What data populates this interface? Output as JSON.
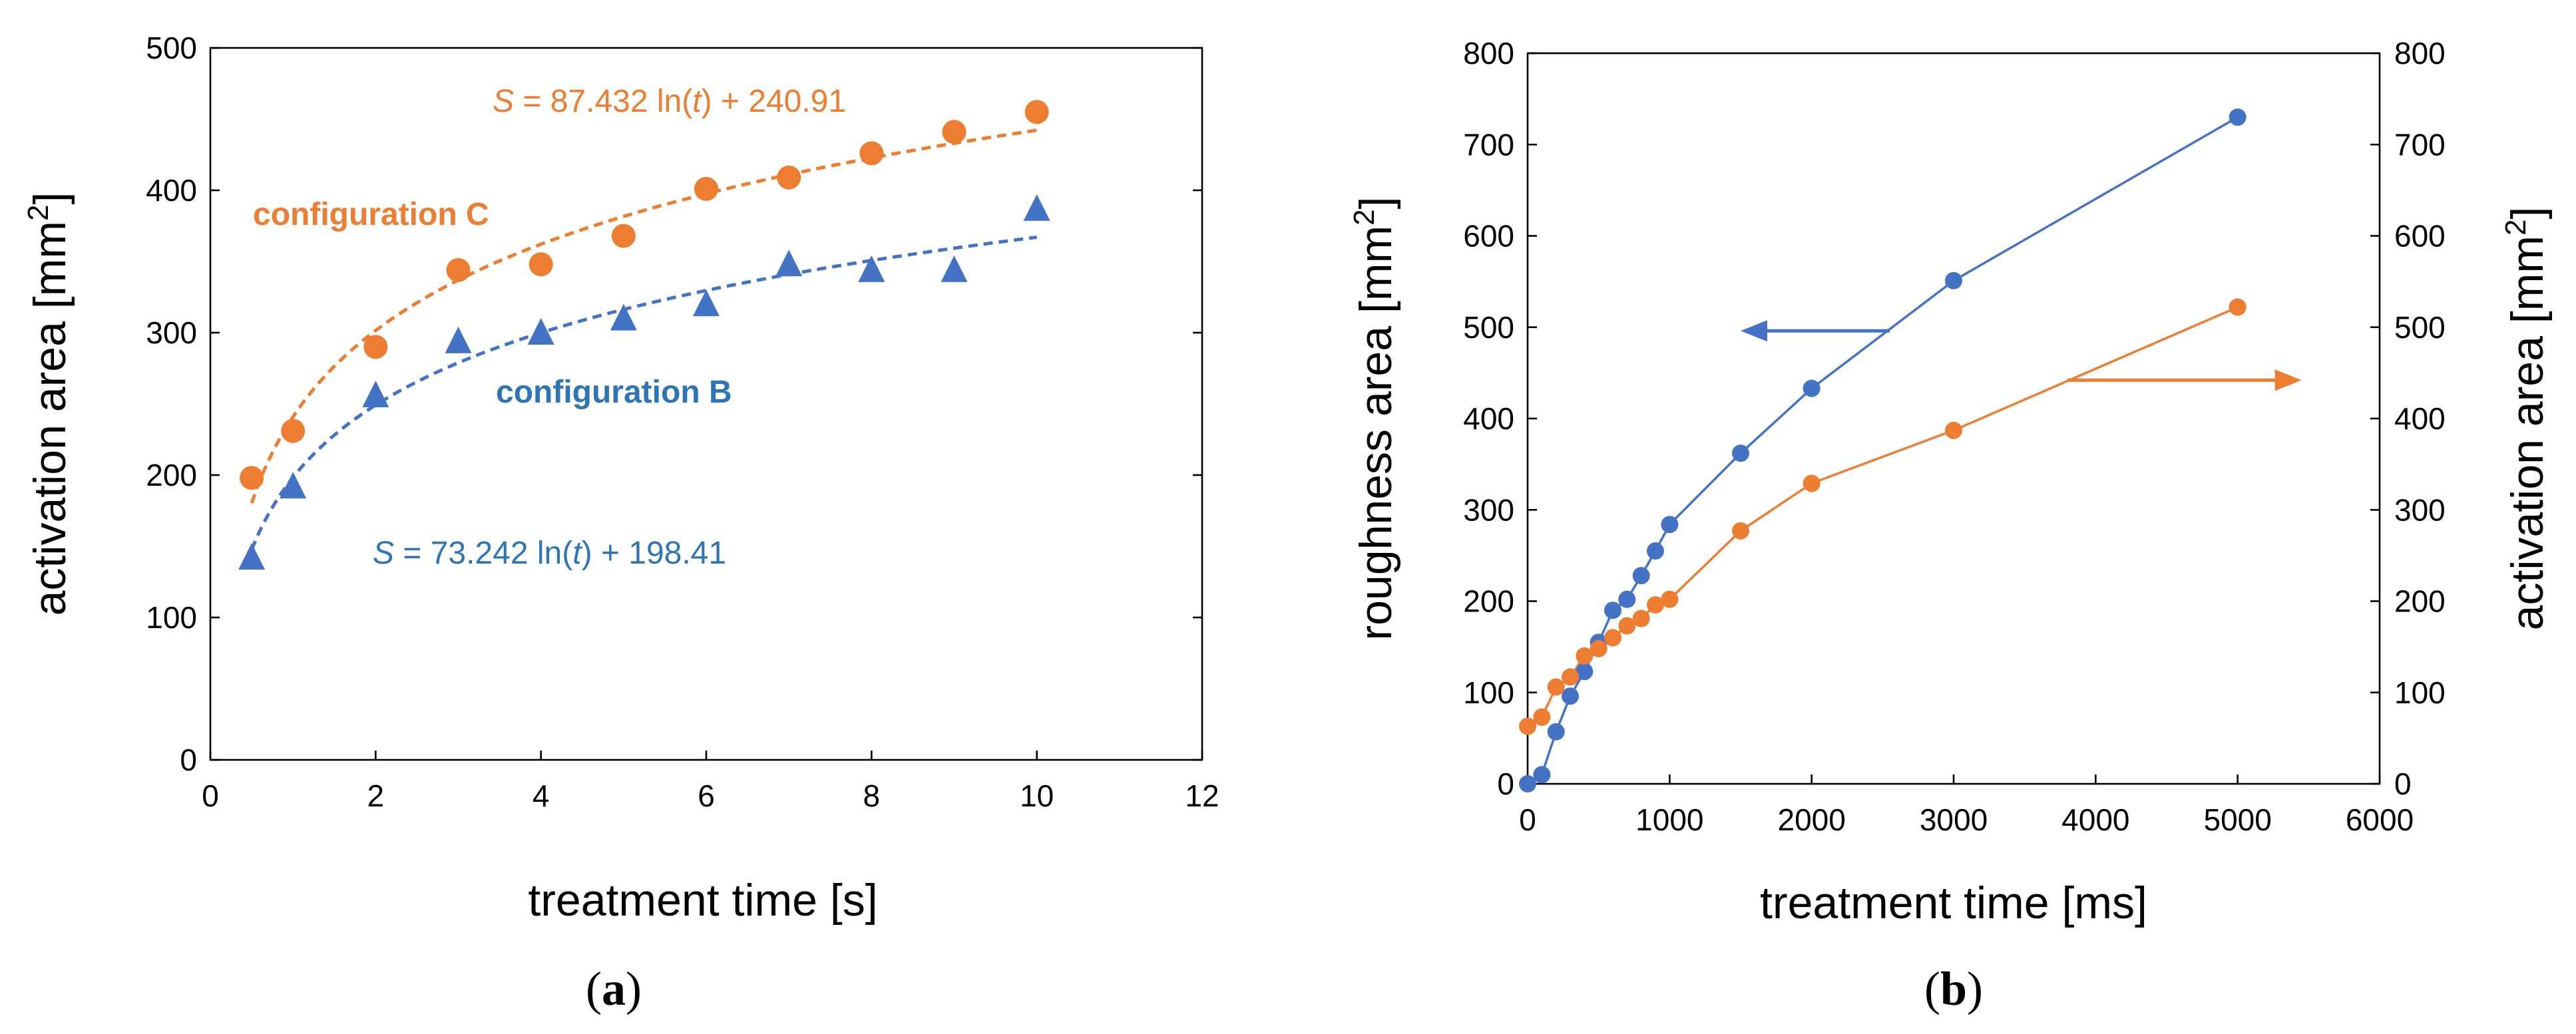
{
  "colors": {
    "orange": "#ED7D31",
    "blue": "#4472C4",
    "blue_text": "#2E75B6"
  },
  "chart_data": [
    {
      "type": "scatter",
      "panel_label": "a",
      "xlabel": "treatment time [s]",
      "ylabel": "activation area [mm",
      "ylabel_sup": "2",
      "ylabel_close": "]",
      "xlim": [
        0,
        12
      ],
      "ylim": [
        0,
        500
      ],
      "xticks": [
        0,
        2,
        4,
        6,
        8,
        10,
        12
      ],
      "yticks": [
        0,
        100,
        200,
        300,
        400,
        500
      ],
      "grid": "outer box only",
      "series": [
        {
          "name": "configuration C",
          "marker": "circle",
          "color": "#ED7D31",
          "x": [
            0.5,
            1,
            2,
            3,
            4,
            5,
            6,
            7,
            8,
            9,
            10
          ],
          "y": [
            198,
            231,
            290,
            344,
            348,
            368,
            401,
            409,
            426,
            441,
            455
          ],
          "fit": {
            "a": 87.432,
            "b": 240.91,
            "equation_pre": "S",
            "equation_mid": " = 87.432 ln(",
            "equation_var": "t",
            "equation_post": ") + 240.91"
          }
        },
        {
          "name": "configuration B",
          "marker": "triangle",
          "color": "#4472C4",
          "x": [
            0.5,
            1,
            2,
            3,
            4,
            5,
            6,
            7,
            8,
            9,
            10
          ],
          "y": [
            142,
            192,
            256,
            294,
            300,
            310,
            320,
            348,
            344,
            344,
            387
          ],
          "fit": {
            "a": 73.242,
            "b": 198.41,
            "equation_pre": "S",
            "equation_mid": " = 73.242 ln(",
            "equation_var": "t",
            "equation_post": ") + 198.41"
          }
        }
      ]
    },
    {
      "type": "line",
      "panel_label": "b",
      "xlabel": "treatment time [ms]",
      "ylabel_left": "roughness area [mm",
      "ylabel_right": "activation area [mm",
      "ylabel_sup": "2",
      "ylabel_close": "]",
      "xlim": [
        0,
        6000
      ],
      "ylim_left": [
        0,
        800
      ],
      "ylim_right": [
        0,
        800
      ],
      "xticks": [
        0,
        1000,
        2000,
        3000,
        4000,
        5000,
        6000
      ],
      "yticks_left": [
        0,
        100,
        200,
        300,
        400,
        500,
        600,
        700,
        800
      ],
      "yticks_right": [
        0,
        100,
        200,
        300,
        400,
        500,
        600,
        700,
        800
      ],
      "grid": "outer box only",
      "series": [
        {
          "axis": "left",
          "color": "#4472C4",
          "x": [
            0,
            100,
            200,
            300,
            400,
            500,
            600,
            700,
            800,
            900,
            1000,
            1500,
            2000,
            3000,
            5000
          ],
          "y": [
            0,
            10,
            57,
            96,
            123,
            155,
            190,
            202,
            228,
            255,
            284,
            362,
            433,
            551,
            730
          ]
        },
        {
          "axis": "right",
          "color": "#ED7D31",
          "x": [
            0,
            100,
            200,
            300,
            400,
            500,
            600,
            700,
            800,
            900,
            1000,
            1500,
            2000,
            3000,
            5000
          ],
          "y": [
            63,
            73,
            106,
            117,
            140,
            148,
            160,
            173,
            181,
            196,
            202,
            277,
            329,
            387,
            522
          ]
        }
      ],
      "annotations": [
        {
          "type": "arrow",
          "direction": "left",
          "points_to": "left axis",
          "color": "#4472C4",
          "x_from": 2550,
          "x_to": 1500,
          "y": 496
        },
        {
          "type": "arrow",
          "direction": "right",
          "points_to": "right axis",
          "color": "#ED7D31",
          "x_from": 3800,
          "x_to": 5450,
          "y": 442
        }
      ]
    }
  ]
}
